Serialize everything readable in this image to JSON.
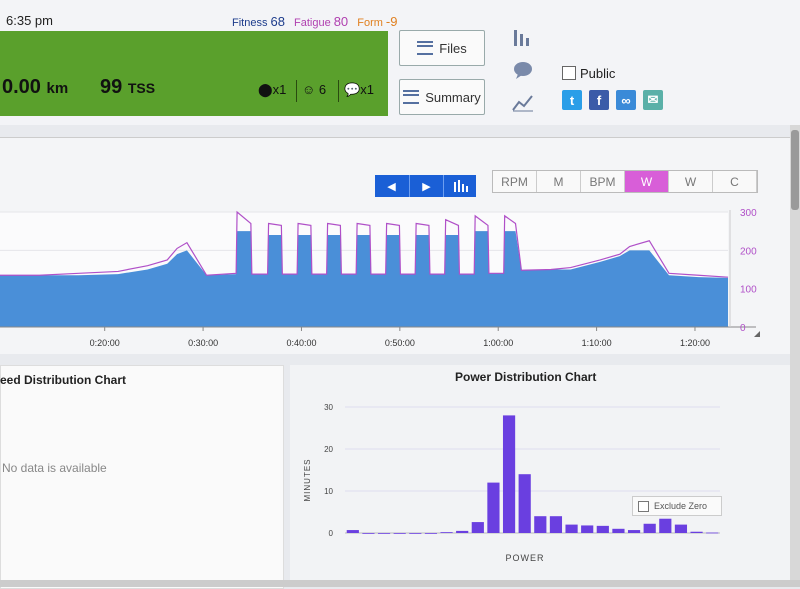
{
  "header": {
    "time": "6:35 pm",
    "fitness_label": "Fitness",
    "fitness_value": "68",
    "fatigue_label": "Fatigue",
    "fatigue_value": "80",
    "form_label": "Form",
    "form_value": "-9",
    "distance_value": "0.00",
    "distance_unit": "km",
    "tss_value": "99",
    "tss_unit": "TSS",
    "kudos": "x1",
    "feelings": "6",
    "comments": "x1",
    "files_label": "Files",
    "summary_label": "Summary",
    "public_label": "Public",
    "colors": {
      "green_bar": "#5aa02c",
      "fitness": "#1d3c8c",
      "fatigue": "#b040b0",
      "form": "#e08020"
    }
  },
  "toolbar": {
    "units": [
      "RPM",
      "M",
      "BPM",
      "W",
      "W",
      "C"
    ],
    "active_unit": 3
  },
  "icons": {
    "kudos": "kettlebell-icon",
    "feelings": "smiley-icon",
    "comments": "comments-icon",
    "files": "files-icon",
    "summary": "summary-icon",
    "bars_view": "bar-chart-icon",
    "comment_view": "speech-bubble-icon",
    "line_view": "line-chart-icon",
    "twitter": "twitter-icon",
    "facebook": "facebook-icon",
    "link": "link-icon",
    "email": "email-icon",
    "prev": "arrow-left-icon",
    "next": "arrow-right-icon",
    "laps": "bar-chart-icon"
  },
  "speed_chart": {
    "title": "eed Distribution Chart",
    "empty_text": "No data is available"
  },
  "power_chart": {
    "title": "Power Distribution Chart",
    "exclude_zero_label": "Exclude Zero"
  },
  "chart_data": [
    {
      "type": "area",
      "x_tick_labels": [
        "0:20:00",
        "0:30:00",
        "0:40:00",
        "0:50:00",
        "1:00:00",
        "1:10:00",
        "1:20:00"
      ],
      "y_tick_labels": [
        "300",
        "200",
        "100",
        "0"
      ],
      "ylim": [
        0,
        300
      ],
      "series": [
        {
          "color": "#4a8fd8",
          "x": [
            12,
            16,
            20,
            24,
            27,
            29,
            30,
            31,
            33,
            36,
            36.1,
            37.5,
            37.6,
            39.2,
            39.3,
            40.6,
            40.7,
            42.2,
            42.3,
            43.6,
            43.7,
            45.2,
            45.3,
            46.6,
            46.7,
            48.2,
            48.3,
            49.6,
            49.7,
            51.2,
            51.3,
            52.6,
            52.7,
            54.2,
            54.3,
            55.6,
            55.7,
            57.2,
            57.3,
            58.6,
            58.7,
            60.2,
            60.3,
            61.6,
            61.7,
            63.2,
            63.3,
            64.4,
            65,
            68,
            70,
            73,
            75,
            76,
            78,
            80,
            83,
            86
          ],
          "values": [
            135,
            135,
            135,
            138,
            150,
            165,
            190,
            200,
            135,
            138,
            250,
            250,
            138,
            138,
            240,
            240,
            138,
            138,
            240,
            240,
            138,
            138,
            240,
            240,
            138,
            138,
            240,
            240,
            138,
            138,
            240,
            240,
            138,
            138,
            240,
            240,
            138,
            138,
            240,
            240,
            138,
            138,
            250,
            250,
            140,
            140,
            250,
            250,
            148,
            150,
            150,
            170,
            185,
            200,
            200,
            135,
            130,
            128
          ]
        },
        {
          "color": "#b050c8",
          "x": [
            12,
            16,
            20,
            24,
            27,
            29,
            30,
            31,
            33,
            36,
            36.1,
            37.5,
            37.6,
            39.2,
            39.3,
            40.6,
            40.7,
            42.2,
            42.3,
            43.6,
            43.7,
            45.2,
            45.3,
            46.6,
            46.7,
            48.2,
            48.3,
            49.6,
            49.7,
            51.2,
            51.3,
            52.6,
            52.7,
            54.2,
            54.3,
            55.6,
            55.7,
            57.2,
            57.3,
            58.6,
            58.7,
            60.2,
            60.3,
            61.6,
            61.7,
            63.2,
            63.3,
            64.4,
            65,
            68,
            70,
            73,
            75,
            76,
            78,
            80,
            83,
            86
          ],
          "values": [
            135,
            135,
            140,
            145,
            160,
            175,
            205,
            220,
            135,
            140,
            300,
            270,
            138,
            138,
            270,
            265,
            138,
            138,
            270,
            265,
            138,
            138,
            270,
            265,
            138,
            138,
            270,
            265,
            138,
            138,
            270,
            265,
            138,
            138,
            270,
            265,
            138,
            138,
            280,
            265,
            138,
            138,
            290,
            265,
            140,
            140,
            290,
            270,
            148,
            150,
            155,
            175,
            190,
            210,
            225,
            140,
            135,
            130
          ]
        }
      ]
    },
    {
      "type": "bar",
      "title": "Power Distribution Chart",
      "xlabel": "POWER",
      "ylabel": "MINUTES",
      "y_tick_labels": [
        "30",
        "20",
        "10",
        "0"
      ],
      "ylim": [
        0,
        30
      ],
      "color": "#6a3fe0",
      "values": [
        0.7,
        0,
        0,
        0,
        0,
        0,
        0.2,
        0.5,
        2.6,
        12,
        28,
        14,
        4,
        4,
        2,
        1.8,
        1.7,
        1,
        0.7,
        2.2,
        3.4,
        2,
        0.3,
        0.1
      ]
    }
  ]
}
